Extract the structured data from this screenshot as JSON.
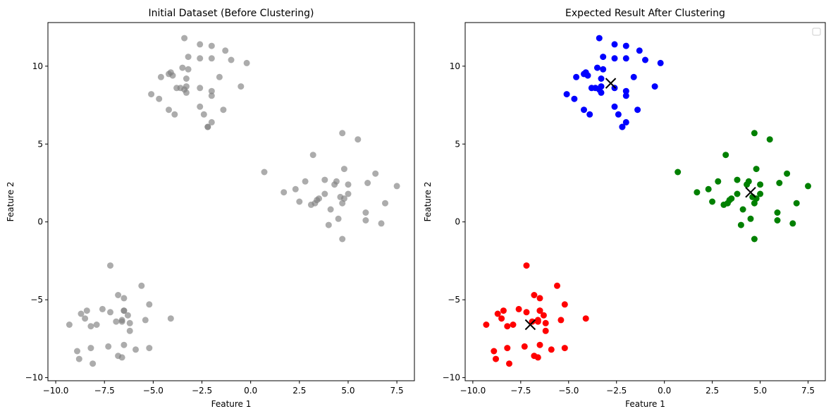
{
  "chart_data": [
    {
      "type": "scatter",
      "title": "Initial Dataset (Before Clustering)",
      "xlabel": "Feature 1",
      "ylabel": "Feature 2",
      "xlim": [
        -10.4,
        8.4
      ],
      "ylim": [
        -10.2,
        12.8
      ],
      "xticks": [
        -10.0,
        -7.5,
        -5.0,
        -2.5,
        0.0,
        2.5,
        5.0,
        7.5
      ],
      "yticks": [
        -10,
        -5,
        0,
        5,
        10
      ],
      "grid": false,
      "legend": "none",
      "series": [
        {
          "color": "#808080",
          "opacity": 0.65,
          "points": [
            [
              -3.4,
              11.8
            ],
            [
              -2.6,
              11.4
            ],
            [
              -2.0,
              11.3
            ],
            [
              -1.3,
              11.0
            ],
            [
              -3.2,
              10.6
            ],
            [
              -2.6,
              10.5
            ],
            [
              -2.0,
              10.5
            ],
            [
              -1.0,
              10.4
            ],
            [
              -0.2,
              10.2
            ],
            [
              -3.5,
              9.9
            ],
            [
              -3.2,
              9.8
            ],
            [
              -4.1,
              9.6
            ],
            [
              -4.2,
              9.5
            ],
            [
              -4.0,
              9.4
            ],
            [
              -4.6,
              9.3
            ],
            [
              -1.6,
              9.3
            ],
            [
              -3.3,
              9.2
            ],
            [
              -3.3,
              8.7
            ],
            [
              -3.6,
              8.6
            ],
            [
              -3.8,
              8.6
            ],
            [
              -3.4,
              8.5
            ],
            [
              -2.6,
              8.6
            ],
            [
              -2.0,
              8.4
            ],
            [
              -3.3,
              8.3
            ],
            [
              -0.5,
              8.7
            ],
            [
              -5.1,
              8.2
            ],
            [
              -4.7,
              7.9
            ],
            [
              -2.0,
              8.1
            ],
            [
              -2.6,
              7.4
            ],
            [
              -1.4,
              7.2
            ],
            [
              -4.2,
              7.2
            ],
            [
              -3.9,
              6.9
            ],
            [
              -2.4,
              6.9
            ],
            [
              -2.0,
              6.4
            ],
            [
              -2.2,
              6.1
            ],
            [
              -2.2,
              6.1
            ],
            [
              4.7,
              5.7
            ],
            [
              5.5,
              5.3
            ],
            [
              3.2,
              4.3
            ],
            [
              0.7,
              3.2
            ],
            [
              4.8,
              3.4
            ],
            [
              6.4,
              3.1
            ],
            [
              2.8,
              2.6
            ],
            [
              3.8,
              2.7
            ],
            [
              4.4,
              2.6
            ],
            [
              4.3,
              2.4
            ],
            [
              5.0,
              2.4
            ],
            [
              6.0,
              2.5
            ],
            [
              7.5,
              2.3
            ],
            [
              1.7,
              1.9
            ],
            [
              2.3,
              2.1
            ],
            [
              3.8,
              1.8
            ],
            [
              5.0,
              1.8
            ],
            [
              4.6,
              1.6
            ],
            [
              4.8,
              1.5
            ],
            [
              3.5,
              1.5
            ],
            [
              3.4,
              1.4
            ],
            [
              3.3,
              1.2
            ],
            [
              3.1,
              1.1
            ],
            [
              2.5,
              1.3
            ],
            [
              4.7,
              1.2
            ],
            [
              6.9,
              1.2
            ],
            [
              4.1,
              0.8
            ],
            [
              5.9,
              0.6
            ],
            [
              5.9,
              0.1
            ],
            [
              4.5,
              0.2
            ],
            [
              4.0,
              -0.2
            ],
            [
              6.7,
              -0.1
            ],
            [
              4.7,
              -1.1
            ],
            [
              -7.2,
              -2.8
            ],
            [
              -5.6,
              -4.1
            ],
            [
              -6.8,
              -4.7
            ],
            [
              -6.5,
              -4.9
            ],
            [
              -5.2,
              -5.3
            ],
            [
              -7.6,
              -5.6
            ],
            [
              -6.5,
              -5.7
            ],
            [
              -6.5,
              -5.7
            ],
            [
              -8.4,
              -5.7
            ],
            [
              -7.2,
              -5.8
            ],
            [
              -8.7,
              -5.9
            ],
            [
              -8.5,
              -6.2
            ],
            [
              -6.3,
              -6.0
            ],
            [
              -4.1,
              -6.2
            ],
            [
              -5.4,
              -6.3
            ],
            [
              -6.9,
              -6.4
            ],
            [
              -6.6,
              -6.3
            ],
            [
              -6.6,
              -6.4
            ],
            [
              -6.2,
              -6.5
            ],
            [
              -7.9,
              -6.6
            ],
            [
              -9.3,
              -6.6
            ],
            [
              -8.2,
              -6.7
            ],
            [
              -6.2,
              -7.0
            ],
            [
              -7.3,
              -8.0
            ],
            [
              -6.5,
              -7.9
            ],
            [
              -5.2,
              -8.1
            ],
            [
              -5.9,
              -8.2
            ],
            [
              -8.2,
              -8.1
            ],
            [
              -8.9,
              -8.3
            ],
            [
              -6.8,
              -8.6
            ],
            [
              -6.6,
              -8.7
            ],
            [
              -8.8,
              -8.8
            ],
            [
              -8.1,
              -9.1
            ]
          ]
        }
      ]
    },
    {
      "type": "scatter",
      "title": "Expected Result After Clustering",
      "xlabel": "Feature 1",
      "ylabel": "Feature 2",
      "xlim": [
        -10.4,
        8.4
      ],
      "ylim": [
        -10.2,
        12.8
      ],
      "xticks": [
        -10.0,
        -7.5,
        -5.0,
        -2.5,
        0.0,
        2.5,
        5.0,
        7.5
      ],
      "yticks": [
        -10,
        -5,
        0,
        5,
        10
      ],
      "grid": false,
      "legend": "top-right (empty)",
      "series": [
        {
          "color": "#0000ff",
          "points": [
            [
              -3.4,
              11.8
            ],
            [
              -2.6,
              11.4
            ],
            [
              -2.0,
              11.3
            ],
            [
              -1.3,
              11.0
            ],
            [
              -3.2,
              10.6
            ],
            [
              -2.6,
              10.5
            ],
            [
              -2.0,
              10.5
            ],
            [
              -1.0,
              10.4
            ],
            [
              -0.2,
              10.2
            ],
            [
              -3.5,
              9.9
            ],
            [
              -3.2,
              9.8
            ],
            [
              -4.1,
              9.6
            ],
            [
              -4.2,
              9.5
            ],
            [
              -4.0,
              9.4
            ],
            [
              -4.6,
              9.3
            ],
            [
              -1.6,
              9.3
            ],
            [
              -3.3,
              9.2
            ],
            [
              -3.3,
              8.7
            ],
            [
              -3.6,
              8.6
            ],
            [
              -3.8,
              8.6
            ],
            [
              -3.4,
              8.5
            ],
            [
              -2.6,
              8.6
            ],
            [
              -2.0,
              8.4
            ],
            [
              -3.3,
              8.3
            ],
            [
              -0.5,
              8.7
            ],
            [
              -5.1,
              8.2
            ],
            [
              -4.7,
              7.9
            ],
            [
              -2.0,
              8.1
            ],
            [
              -2.6,
              7.4
            ],
            [
              -1.4,
              7.2
            ],
            [
              -4.2,
              7.2
            ],
            [
              -3.9,
              6.9
            ],
            [
              -2.4,
              6.9
            ],
            [
              -2.0,
              6.4
            ],
            [
              -2.2,
              6.1
            ],
            [
              -2.2,
              6.1
            ]
          ]
        },
        {
          "color": "#008000",
          "points": [
            [
              4.7,
              5.7
            ],
            [
              5.5,
              5.3
            ],
            [
              3.2,
              4.3
            ],
            [
              0.7,
              3.2
            ],
            [
              4.8,
              3.4
            ],
            [
              6.4,
              3.1
            ],
            [
              2.8,
              2.6
            ],
            [
              3.8,
              2.7
            ],
            [
              4.4,
              2.6
            ],
            [
              4.3,
              2.4
            ],
            [
              5.0,
              2.4
            ],
            [
              6.0,
              2.5
            ],
            [
              7.5,
              2.3
            ],
            [
              1.7,
              1.9
            ],
            [
              2.3,
              2.1
            ],
            [
              3.8,
              1.8
            ],
            [
              5.0,
              1.8
            ],
            [
              4.6,
              1.6
            ],
            [
              4.8,
              1.5
            ],
            [
              3.5,
              1.5
            ],
            [
              3.4,
              1.4
            ],
            [
              3.3,
              1.2
            ],
            [
              3.1,
              1.1
            ],
            [
              2.5,
              1.3
            ],
            [
              4.7,
              1.2
            ],
            [
              6.9,
              1.2
            ],
            [
              4.1,
              0.8
            ],
            [
              5.9,
              0.6
            ],
            [
              5.9,
              0.1
            ],
            [
              4.5,
              0.2
            ],
            [
              4.0,
              -0.2
            ],
            [
              6.7,
              -0.1
            ],
            [
              4.7,
              -1.1
            ]
          ]
        },
        {
          "color": "#ff0000",
          "points": [
            [
              -7.2,
              -2.8
            ],
            [
              -5.6,
              -4.1
            ],
            [
              -6.8,
              -4.7
            ],
            [
              -6.5,
              -4.9
            ],
            [
              -5.2,
              -5.3
            ],
            [
              -7.6,
              -5.6
            ],
            [
              -6.5,
              -5.7
            ],
            [
              -6.5,
              -5.7
            ],
            [
              -8.4,
              -5.7
            ],
            [
              -7.2,
              -5.8
            ],
            [
              -8.7,
              -5.9
            ],
            [
              -8.5,
              -6.2
            ],
            [
              -6.3,
              -6.0
            ],
            [
              -4.1,
              -6.2
            ],
            [
              -5.4,
              -6.3
            ],
            [
              -6.9,
              -6.4
            ],
            [
              -6.6,
              -6.3
            ],
            [
              -6.6,
              -6.4
            ],
            [
              -6.2,
              -6.5
            ],
            [
              -7.9,
              -6.6
            ],
            [
              -9.3,
              -6.6
            ],
            [
              -8.2,
              -6.7
            ],
            [
              -6.2,
              -7.0
            ],
            [
              -7.3,
              -8.0
            ],
            [
              -6.5,
              -7.9
            ],
            [
              -5.2,
              -8.1
            ],
            [
              -5.9,
              -8.2
            ],
            [
              -8.2,
              -8.1
            ],
            [
              -8.9,
              -8.3
            ],
            [
              -6.8,
              -8.6
            ],
            [
              -6.6,
              -8.7
            ],
            [
              -8.8,
              -8.8
            ],
            [
              -8.1,
              -9.1
            ]
          ]
        }
      ],
      "centroids": {
        "marker": "x",
        "color": "#000000",
        "points": [
          [
            -2.8,
            8.9
          ],
          [
            4.5,
            1.9
          ],
          [
            -7.0,
            -6.6
          ]
        ]
      }
    }
  ]
}
